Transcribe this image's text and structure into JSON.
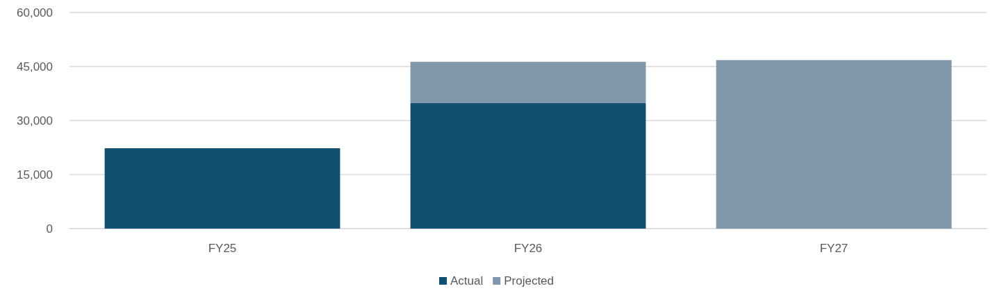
{
  "chart_data": {
    "type": "bar",
    "stacked": true,
    "categories": [
      "FY25",
      "FY26",
      "FY27"
    ],
    "series": [
      {
        "name": "Actual",
        "color": "#11506e",
        "values": [
          22300,
          34800,
          null
        ]
      },
      {
        "name": "Projected",
        "color": "#8096aa",
        "values": [
          null,
          11500,
          46800
        ]
      }
    ],
    "ylim": [
      0,
      60000
    ],
    "yticks": [
      0,
      {
        "value": 15000,
        "label": "15,000"
      },
      {
        "value": 30000,
        "label": "30,000"
      },
      {
        "value": 45000,
        "label": "45,000"
      },
      {
        "value": 60000,
        "label": "60,000"
      }
    ],
    "grid": "y",
    "legend": "bottom"
  }
}
